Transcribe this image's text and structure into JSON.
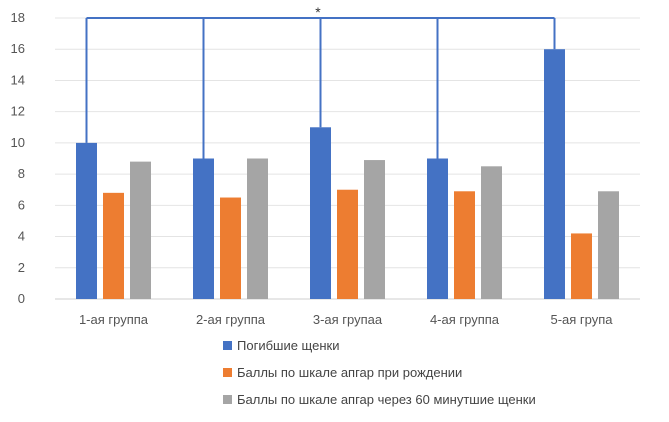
{
  "chart_data": {
    "type": "bar",
    "categories": [
      "1-ая группа",
      "2-ая группа",
      "3-ая групаа",
      "4-ая группа",
      "5-ая група"
    ],
    "series": [
      {
        "name": "Погибшие щенки",
        "values": [
          10,
          9,
          11,
          9,
          16
        ],
        "color": "#4472C4"
      },
      {
        "name": "Баллы по шкале апгар при рождении",
        "values": [
          6.8,
          6.5,
          7,
          6.9,
          4.2
        ],
        "color": "#ED7D31"
      },
      {
        "name": "Баллы по шкале апгар через 60 минутшие щенки",
        "values": [
          8.8,
          9,
          8.9,
          8.5,
          6.9
        ],
        "color": "#A5A5A5"
      }
    ],
    "ylim": [
      0,
      18
    ],
    "yticks": [
      0,
      2,
      4,
      6,
      8,
      10,
      12,
      14,
      16,
      18
    ],
    "grid": true,
    "legend_position": "bottom",
    "significance": {
      "symbol": "*",
      "bracket_height": 18,
      "bracket_color": "#4472C4"
    },
    "title": "",
    "xlabel": "",
    "ylabel": ""
  }
}
